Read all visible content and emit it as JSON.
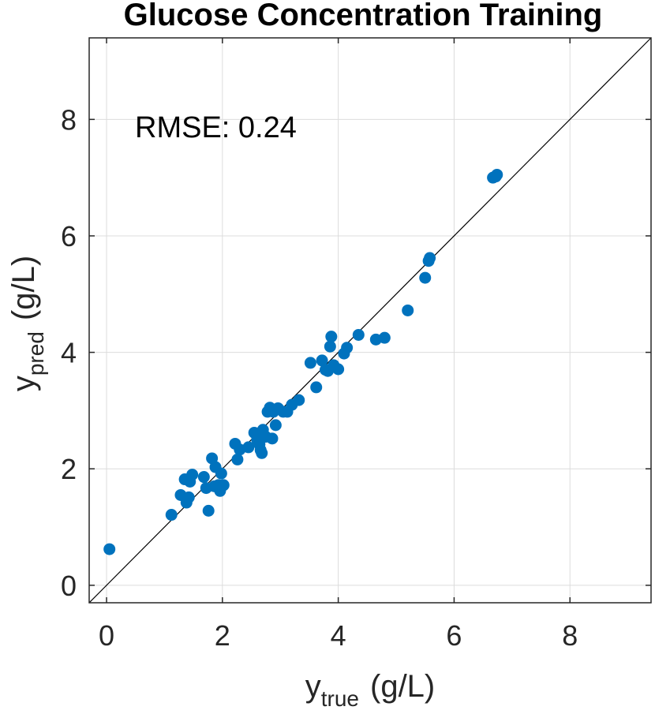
{
  "chart_data": {
    "type": "scatter",
    "title": "Glucose Concentration Training",
    "xlabel": {
      "base": "y",
      "sub": "true",
      "unit": "(g/L)"
    },
    "ylabel": {
      "base": "y",
      "sub": "pred",
      "unit": "(g/L)"
    },
    "xlim": [
      -0.3,
      9.4
    ],
    "ylim": [
      -0.3,
      9.4
    ],
    "xticks": [
      "0",
      "2",
      "4",
      "6",
      "8"
    ],
    "yticks": [
      "0",
      "2",
      "4",
      "6",
      "8"
    ],
    "tick_values": [
      0,
      2,
      4,
      6,
      8
    ],
    "grid": true,
    "annotation": "RMSE: 0.24",
    "reference_line": "y = x",
    "marker_color": "#0072BD",
    "series": [
      {
        "name": "Training",
        "points": [
          [
            0.05,
            0.62
          ],
          [
            1.12,
            1.21
          ],
          [
            1.28,
            1.55
          ],
          [
            1.35,
            1.82
          ],
          [
            1.38,
            1.42
          ],
          [
            1.42,
            1.51
          ],
          [
            1.44,
            1.78
          ],
          [
            1.48,
            1.9
          ],
          [
            1.68,
            1.86
          ],
          [
            1.72,
            1.67
          ],
          [
            1.76,
            1.28
          ],
          [
            1.82,
            2.18
          ],
          [
            1.86,
            1.7
          ],
          [
            1.88,
            2.03
          ],
          [
            1.93,
            1.72
          ],
          [
            1.96,
            1.62
          ],
          [
            1.98,
            1.92
          ],
          [
            2.02,
            1.72
          ],
          [
            2.22,
            2.43
          ],
          [
            2.26,
            2.16
          ],
          [
            2.3,
            2.33
          ],
          [
            2.45,
            2.37
          ],
          [
            2.55,
            2.62
          ],
          [
            2.6,
            2.5
          ],
          [
            2.64,
            2.42
          ],
          [
            2.66,
            2.32
          ],
          [
            2.68,
            2.27
          ],
          [
            2.7,
            2.67
          ],
          [
            2.75,
            2.55
          ],
          [
            2.78,
            2.98
          ],
          [
            2.82,
            3.05
          ],
          [
            2.86,
            2.52
          ],
          [
            2.88,
            2.98
          ],
          [
            2.92,
            2.75
          ],
          [
            2.96,
            3.04
          ],
          [
            3.05,
            2.98
          ],
          [
            3.12,
            2.98
          ],
          [
            3.2,
            3.1
          ],
          [
            3.32,
            3.18
          ],
          [
            3.52,
            3.82
          ],
          [
            3.62,
            3.4
          ],
          [
            3.72,
            3.86
          ],
          [
            3.78,
            3.7
          ],
          [
            3.82,
            3.68
          ],
          [
            3.86,
            4.1
          ],
          [
            3.88,
            4.27
          ],
          [
            3.92,
            3.78
          ],
          [
            4.0,
            3.71
          ],
          [
            4.1,
            3.98
          ],
          [
            4.15,
            4.08
          ],
          [
            4.35,
            4.3
          ],
          [
            4.65,
            4.22
          ],
          [
            4.8,
            4.25
          ],
          [
            5.2,
            4.72
          ],
          [
            5.5,
            5.28
          ],
          [
            5.56,
            5.57
          ],
          [
            5.58,
            5.62
          ],
          [
            6.67,
            7.0
          ],
          [
            6.72,
            7.02
          ],
          [
            6.74,
            7.05
          ]
        ]
      }
    ]
  }
}
